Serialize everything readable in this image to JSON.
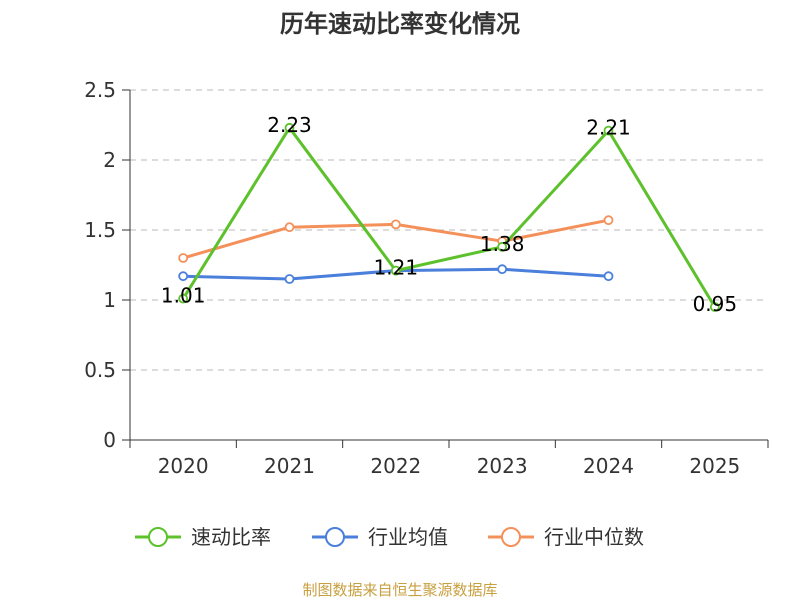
{
  "chart_data": {
    "type": "line",
    "title": "历年速动比率变化情况",
    "categories": [
      "2020",
      "2021",
      "2022",
      "2023",
      "2024",
      "2025"
    ],
    "ylim": [
      0,
      2.5
    ],
    "yticks": [
      "0",
      "0.5",
      "1",
      "1.5",
      "2",
      "2.5"
    ],
    "ytick_values": [
      0,
      0.5,
      1,
      1.5,
      2,
      2.5
    ],
    "grid": true,
    "legend_position": "bottom",
    "series": [
      {
        "name": "速动比率",
        "color": "#5cc12b",
        "values": [
          1.01,
          2.23,
          1.21,
          1.38,
          2.21,
          0.95
        ],
        "labels": [
          "1.01",
          "2.23",
          "1.21",
          "1.38",
          "2.21",
          "0.95"
        ]
      },
      {
        "name": "行业均值",
        "color": "#4a7fdb",
        "values": [
          1.17,
          1.15,
          1.21,
          1.22,
          1.17,
          null
        ]
      },
      {
        "name": "行业中位数",
        "color": "#f4905a",
        "values": [
          1.3,
          1.52,
          1.54,
          1.42,
          1.57,
          null
        ]
      }
    ]
  },
  "footer": {
    "source": "制图数据来自恒生聚源数据库"
  }
}
